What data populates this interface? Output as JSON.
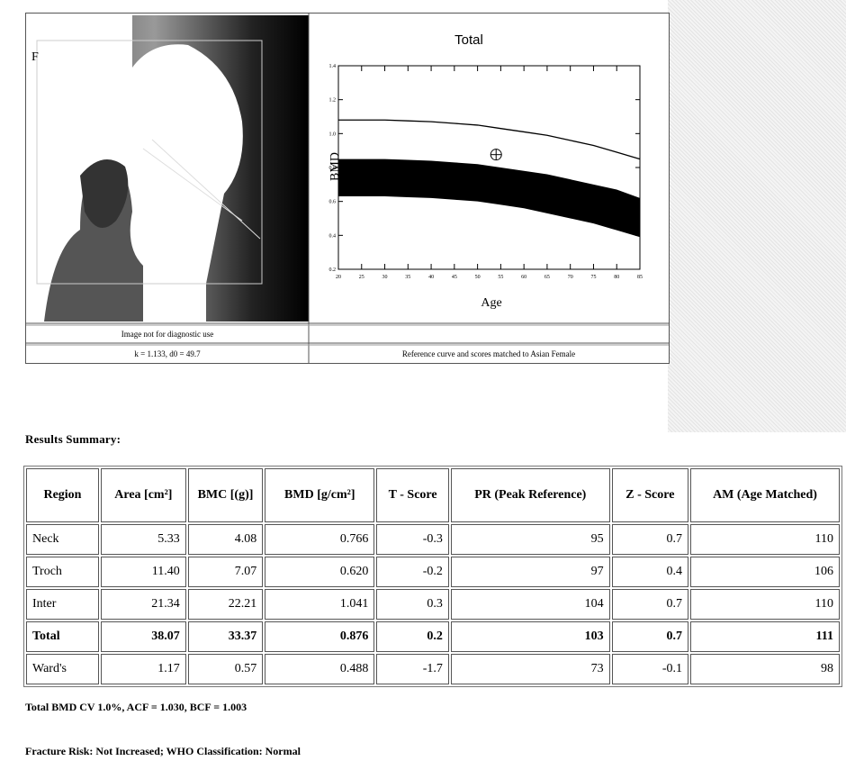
{
  "image_panel": {
    "marker": "F",
    "caption": "Image not for diagnostic use",
    "params": "k = 1.133, d0 = 49.7"
  },
  "chart_data": {
    "type": "line",
    "title": "Total",
    "x_label": "Age",
    "y_label": "BMD",
    "x": [
      20,
      25,
      30,
      35,
      40,
      45,
      50,
      55,
      60,
      65,
      70,
      75,
      80,
      85
    ],
    "xlim": [
      20,
      85
    ],
    "xticks": [
      20,
      25,
      30,
      35,
      40,
      45,
      50,
      55,
      60,
      65,
      70,
      75,
      80,
      85
    ],
    "ylim": [
      0.2,
      1.4
    ],
    "yticks": [
      0.2,
      0.4,
      0.6,
      0.8,
      {
        "value": 1,
        "label": "1.0"
      },
      1.2,
      1.4
    ],
    "series": [
      {
        "color": "#000000",
        "values": [
          1.08,
          1.08,
          1.08,
          1.075,
          1.07,
          1.06,
          1.05,
          1.03,
          1.01,
          0.99,
          0.96,
          0.93,
          0.89,
          0.85
        ]
      }
    ],
    "band": {
      "color": "#000000",
      "upper": [
        0.85,
        0.85,
        0.85,
        0.845,
        0.84,
        0.83,
        0.82,
        0.8,
        0.78,
        0.76,
        0.73,
        0.7,
        0.67,
        0.62
      ],
      "lower": [
        0.63,
        0.63,
        0.63,
        0.625,
        0.62,
        0.61,
        0.6,
        0.58,
        0.56,
        0.53,
        0.5,
        0.47,
        0.43,
        0.39
      ]
    },
    "point": {
      "x": 54,
      "y": 0.876
    }
  },
  "reference_note": "Reference curve and scores matched to Asian Female",
  "results": {
    "title": "Results Summary:",
    "columns": [
      "Region",
      "Area [cm²]",
      "BMC [(g)]",
      "BMD [g/cm²]",
      "T - Score",
      "PR (Peak Reference)",
      "Z - Score",
      "AM (Age Matched)"
    ],
    "rows": [
      {
        "cells": [
          "Neck",
          "5.33",
          "4.08",
          "0.766",
          "-0.3",
          "95",
          "0.7",
          "110"
        ],
        "emphasis": false
      },
      {
        "cells": [
          "Troch",
          "11.40",
          "7.07",
          "0.620",
          "-0.2",
          "97",
          "0.4",
          "106"
        ],
        "emphasis": false
      },
      {
        "cells": [
          "Inter",
          "21.34",
          "22.21",
          "1.041",
          "0.3",
          "104",
          "0.7",
          "110"
        ],
        "emphasis": false
      },
      {
        "cells": [
          "Total",
          "38.07",
          "33.37",
          "0.876",
          "0.2",
          "103",
          "0.7",
          "111"
        ],
        "emphasis": true
      },
      {
        "cells": [
          "Ward's",
          "1.17",
          "0.57",
          "0.488",
          "-1.7",
          "73",
          "-0.1",
          "98"
        ],
        "emphasis": false
      }
    ]
  },
  "footer": [
    "Total BMD CV 1.0%, ACF = 1.030, BCF = 1.003",
    "Fracture Risk: Not Increased; WHO Classification: Normal"
  ]
}
